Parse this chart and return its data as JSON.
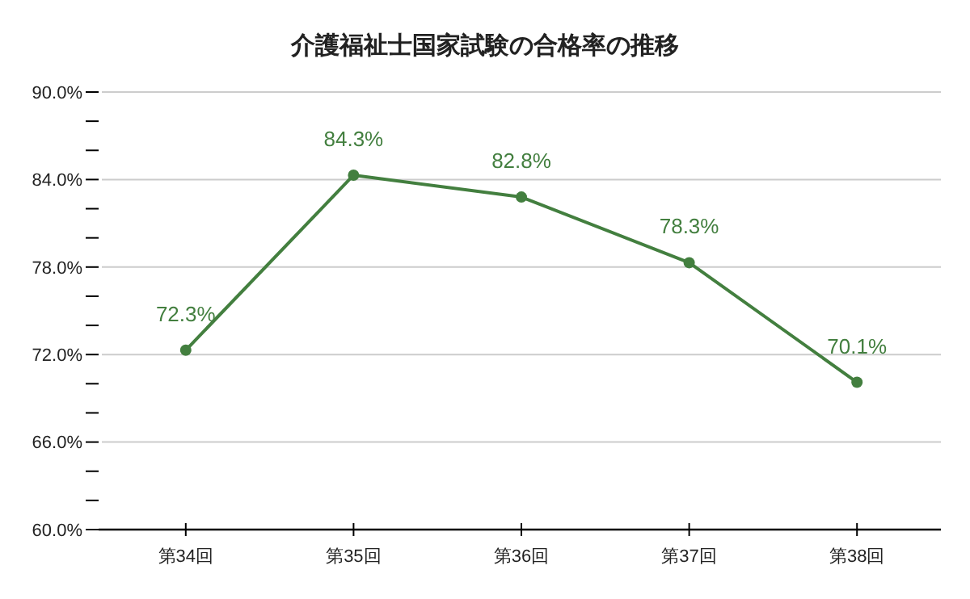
{
  "chart_data": {
    "type": "line",
    "title": "介護福祉士国家試験の合格率の推移",
    "categories": [
      "第34回",
      "第35回",
      "第36回",
      "第37回",
      "第38回"
    ],
    "series": [
      {
        "color": "#437f3f",
        "values": [
          72.3,
          84.3,
          82.8,
          78.3,
          70.1
        ],
        "value_labels": [
          "72.3%",
          "84.3%",
          "82.8%",
          "78.3%",
          "70.1%"
        ]
      }
    ],
    "ylim": [
      60,
      90
    ],
    "yticks": [
      {
        "value": 60,
        "label": "60.0%"
      },
      {
        "value": 62,
        "label": null
      },
      {
        "value": 64,
        "label": null
      },
      {
        "value": 66,
        "label": "66.0%"
      },
      {
        "value": 68,
        "label": null
      },
      {
        "value": 70,
        "label": null
      },
      {
        "value": 72,
        "label": "72.0%"
      },
      {
        "value": 74,
        "label": null
      },
      {
        "value": 76,
        "label": null
      },
      {
        "value": 78,
        "label": "78.0%"
      },
      {
        "value": 80,
        "label": null
      },
      {
        "value": 82,
        "label": null
      },
      {
        "value": 84,
        "label": "84.0%"
      },
      {
        "value": 86,
        "label": null
      },
      {
        "value": 88,
        "label": null
      },
      {
        "value": 90,
        "label": "90.0%"
      }
    ],
    "grid": "y",
    "marker": "circle",
    "line_style": "solid"
  }
}
